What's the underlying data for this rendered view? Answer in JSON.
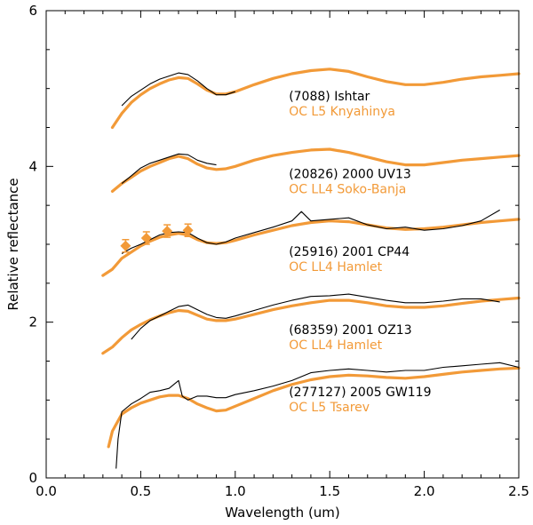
{
  "chart_data": {
    "type": "line",
    "title": "",
    "xlabel": "Wavelength (um)",
    "ylabel": "Relative reflectance",
    "xlim": [
      0.0,
      2.5
    ],
    "ylim": [
      0,
      6
    ],
    "x_ticks": [
      0.0,
      0.5,
      1.0,
      1.5,
      2.0,
      2.5
    ],
    "x_tick_labels": [
      "0.0",
      "0.5",
      "1.0",
      "1.5",
      "2.0",
      "2.5"
    ],
    "y_ticks": [
      0,
      2,
      4,
      6
    ],
    "y_tick_labels": [
      "0",
      "2",
      "4",
      "6"
    ],
    "grid": false,
    "legend": "none",
    "colors": {
      "asteroid": "#000000",
      "meteorite": "#f29a38"
    },
    "series": [
      {
        "name": "(7088) Ishtar",
        "kind": "asteroid",
        "x": [
          0.4,
          0.45,
          0.5,
          0.55,
          0.6,
          0.65,
          0.7,
          0.75,
          0.8,
          0.85,
          0.9,
          0.95,
          1.0
        ],
        "y": [
          4.78,
          4.9,
          4.98,
          5.06,
          5.12,
          5.16,
          5.2,
          5.18,
          5.1,
          5.0,
          4.92,
          4.92,
          4.96
        ]
      },
      {
        "name": "OC L5 Knyahinya",
        "kind": "meteorite",
        "x": [
          0.35,
          0.4,
          0.45,
          0.5,
          0.55,
          0.6,
          0.65,
          0.7,
          0.75,
          0.8,
          0.85,
          0.9,
          0.95,
          1.0,
          1.1,
          1.2,
          1.3,
          1.4,
          1.5,
          1.6,
          1.7,
          1.8,
          1.9,
          2.0,
          2.1,
          2.2,
          2.3,
          2.4,
          2.5
        ],
        "y": [
          4.5,
          4.68,
          4.82,
          4.92,
          5.0,
          5.06,
          5.11,
          5.14,
          5.13,
          5.06,
          4.98,
          4.93,
          4.93,
          4.96,
          5.05,
          5.13,
          5.19,
          5.23,
          5.25,
          5.22,
          5.15,
          5.09,
          5.05,
          5.05,
          5.08,
          5.12,
          5.15,
          5.17,
          5.19
        ]
      },
      {
        "name": "(20826) 2000 UV13",
        "kind": "asteroid",
        "x": [
          0.4,
          0.45,
          0.5,
          0.55,
          0.6,
          0.65,
          0.7,
          0.75,
          0.8,
          0.85,
          0.9
        ],
        "y": [
          3.78,
          3.88,
          3.98,
          4.04,
          4.08,
          4.12,
          4.16,
          4.15,
          4.08,
          4.04,
          4.02
        ]
      },
      {
        "name": "OC LL4 Soko-Banja",
        "kind": "meteorite",
        "x": [
          0.35,
          0.4,
          0.45,
          0.5,
          0.55,
          0.6,
          0.65,
          0.7,
          0.75,
          0.8,
          0.85,
          0.9,
          0.95,
          1.0,
          1.1,
          1.2,
          1.3,
          1.4,
          1.5,
          1.6,
          1.7,
          1.8,
          1.9,
          2.0,
          2.1,
          2.2,
          2.3,
          2.4,
          2.5
        ],
        "y": [
          3.68,
          3.78,
          3.86,
          3.94,
          4.0,
          4.05,
          4.1,
          4.13,
          4.1,
          4.03,
          3.98,
          3.96,
          3.97,
          4.0,
          4.08,
          4.14,
          4.18,
          4.21,
          4.22,
          4.18,
          4.12,
          4.06,
          4.02,
          4.02,
          4.05,
          4.08,
          4.1,
          4.12,
          4.14
        ]
      },
      {
        "name": "(25916) 2001 CP44",
        "kind": "asteroid",
        "x": [
          0.4,
          0.45,
          0.5,
          0.55,
          0.6,
          0.65,
          0.7,
          0.75,
          0.8,
          0.85,
          0.9,
          0.95,
          1.0,
          1.1,
          1.2,
          1.3,
          1.35,
          1.4,
          1.5,
          1.6,
          1.7,
          1.8,
          1.9,
          2.0,
          2.1,
          2.2,
          2.3,
          2.4
        ],
        "y": [
          2.88,
          2.95,
          3.0,
          3.06,
          3.12,
          3.15,
          3.16,
          3.15,
          3.08,
          3.02,
          3.0,
          3.03,
          3.08,
          3.15,
          3.22,
          3.3,
          3.42,
          3.3,
          3.32,
          3.34,
          3.25,
          3.2,
          3.22,
          3.18,
          3.2,
          3.24,
          3.3,
          3.44
        ]
      },
      {
        "name": "OC LL4 Hamlet",
        "kind": "meteorite",
        "x": [
          0.3,
          0.35,
          0.4,
          0.45,
          0.5,
          0.55,
          0.6,
          0.65,
          0.7,
          0.75,
          0.8,
          0.85,
          0.9,
          0.95,
          1.0,
          1.1,
          1.2,
          1.3,
          1.4,
          1.5,
          1.6,
          1.7,
          1.8,
          1.9,
          2.0,
          2.1,
          2.2,
          2.3,
          2.4,
          2.5
        ],
        "y": [
          2.6,
          2.68,
          2.82,
          2.9,
          2.98,
          3.04,
          3.09,
          3.12,
          3.14,
          3.12,
          3.06,
          3.02,
          3.01,
          3.02,
          3.05,
          3.12,
          3.18,
          3.24,
          3.28,
          3.3,
          3.29,
          3.25,
          3.21,
          3.19,
          3.2,
          3.22,
          3.25,
          3.28,
          3.3,
          3.32
        ]
      },
      {
        "name": "(68359) 2001 OZ13",
        "kind": "asteroid",
        "x": [
          0.45,
          0.5,
          0.55,
          0.6,
          0.65,
          0.7,
          0.75,
          0.8,
          0.85,
          0.9,
          0.95,
          1.0,
          1.1,
          1.2,
          1.3,
          1.4,
          1.5,
          1.6,
          1.7,
          1.8,
          1.9,
          2.0,
          2.1,
          2.2,
          2.3,
          2.4
        ],
        "y": [
          1.78,
          1.92,
          2.02,
          2.08,
          2.14,
          2.2,
          2.22,
          2.16,
          2.1,
          2.06,
          2.05,
          2.08,
          2.15,
          2.22,
          2.28,
          2.33,
          2.34,
          2.36,
          2.32,
          2.28,
          2.25,
          2.25,
          2.27,
          2.3,
          2.3,
          2.26
        ]
      },
      {
        "name": "OC LL4 Hamlet",
        "kind": "meteorite",
        "x": [
          0.3,
          0.35,
          0.4,
          0.45,
          0.5,
          0.55,
          0.6,
          0.65,
          0.7,
          0.75,
          0.8,
          0.85,
          0.9,
          0.95,
          1.0,
          1.1,
          1.2,
          1.3,
          1.4,
          1.5,
          1.6,
          1.7,
          1.8,
          1.9,
          2.0,
          2.1,
          2.2,
          2.3,
          2.4,
          2.5
        ],
        "y": [
          1.6,
          1.68,
          1.8,
          1.9,
          1.97,
          2.03,
          2.08,
          2.12,
          2.15,
          2.14,
          2.09,
          2.04,
          2.02,
          2.02,
          2.04,
          2.1,
          2.16,
          2.21,
          2.25,
          2.28,
          2.28,
          2.25,
          2.21,
          2.19,
          2.19,
          2.21,
          2.24,
          2.27,
          2.29,
          2.31
        ]
      },
      {
        "name": "(277127) 2005 GW119",
        "kind": "asteroid",
        "x": [
          0.37,
          0.38,
          0.4,
          0.45,
          0.5,
          0.55,
          0.6,
          0.65,
          0.7,
          0.72,
          0.75,
          0.8,
          0.85,
          0.9,
          0.95,
          1.0,
          1.1,
          1.2,
          1.3,
          1.4,
          1.5,
          1.6,
          1.7,
          1.8,
          1.9,
          2.0,
          2.1,
          2.2,
          2.3,
          2.4,
          2.5
        ],
        "y": [
          0.12,
          0.5,
          0.85,
          0.95,
          1.02,
          1.1,
          1.12,
          1.15,
          1.25,
          1.05,
          1.0,
          1.05,
          1.05,
          1.03,
          1.03,
          1.07,
          1.12,
          1.18,
          1.25,
          1.35,
          1.38,
          1.4,
          1.38,
          1.36,
          1.38,
          1.38,
          1.42,
          1.44,
          1.46,
          1.48,
          1.42
        ]
      },
      {
        "name": "OC L5 Tsarev",
        "kind": "meteorite",
        "x": [
          0.33,
          0.35,
          0.4,
          0.45,
          0.5,
          0.55,
          0.6,
          0.65,
          0.7,
          0.75,
          0.8,
          0.85,
          0.9,
          0.95,
          1.0,
          1.1,
          1.2,
          1.3,
          1.4,
          1.5,
          1.6,
          1.7,
          1.8,
          1.9,
          2.0,
          2.1,
          2.2,
          2.3,
          2.4,
          2.5
        ],
        "y": [
          0.4,
          0.6,
          0.82,
          0.9,
          0.96,
          1.0,
          1.04,
          1.06,
          1.06,
          1.02,
          0.95,
          0.9,
          0.86,
          0.87,
          0.92,
          1.02,
          1.12,
          1.2,
          1.26,
          1.3,
          1.32,
          1.31,
          1.29,
          1.28,
          1.3,
          1.33,
          1.36,
          1.38,
          1.4,
          1.41
        ]
      }
    ],
    "visible_points": {
      "kind": "meteorite",
      "x": [
        0.42,
        0.53,
        0.64,
        0.75
      ],
      "y": [
        2.98,
        3.08,
        3.17,
        3.18
      ],
      "yerr": [
        0.08,
        0.08,
        0.08,
        0.08
      ]
    },
    "annotations": [
      {
        "asteroid": "(7088) Ishtar",
        "meteorite": "OC L5 Knyahinya",
        "x": 1.5,
        "y": 4.85
      },
      {
        "asteroid": "(20826) 2000 UV13",
        "meteorite": "OC LL4 Soko-Banja",
        "x": 1.5,
        "y": 3.85
      },
      {
        "asteroid": "(25916) 2001 CP44",
        "meteorite": "OC LL4 Hamlet",
        "x": 1.5,
        "y": 2.85
      },
      {
        "asteroid": "(68359) 2001 OZ13",
        "meteorite": "OC LL4 Hamlet",
        "x": 1.5,
        "y": 1.85
      },
      {
        "asteroid": "(277127) 2005 GW119",
        "meteorite": "OC L5 Tsarev",
        "x": 1.5,
        "y": 1.05
      }
    ]
  }
}
